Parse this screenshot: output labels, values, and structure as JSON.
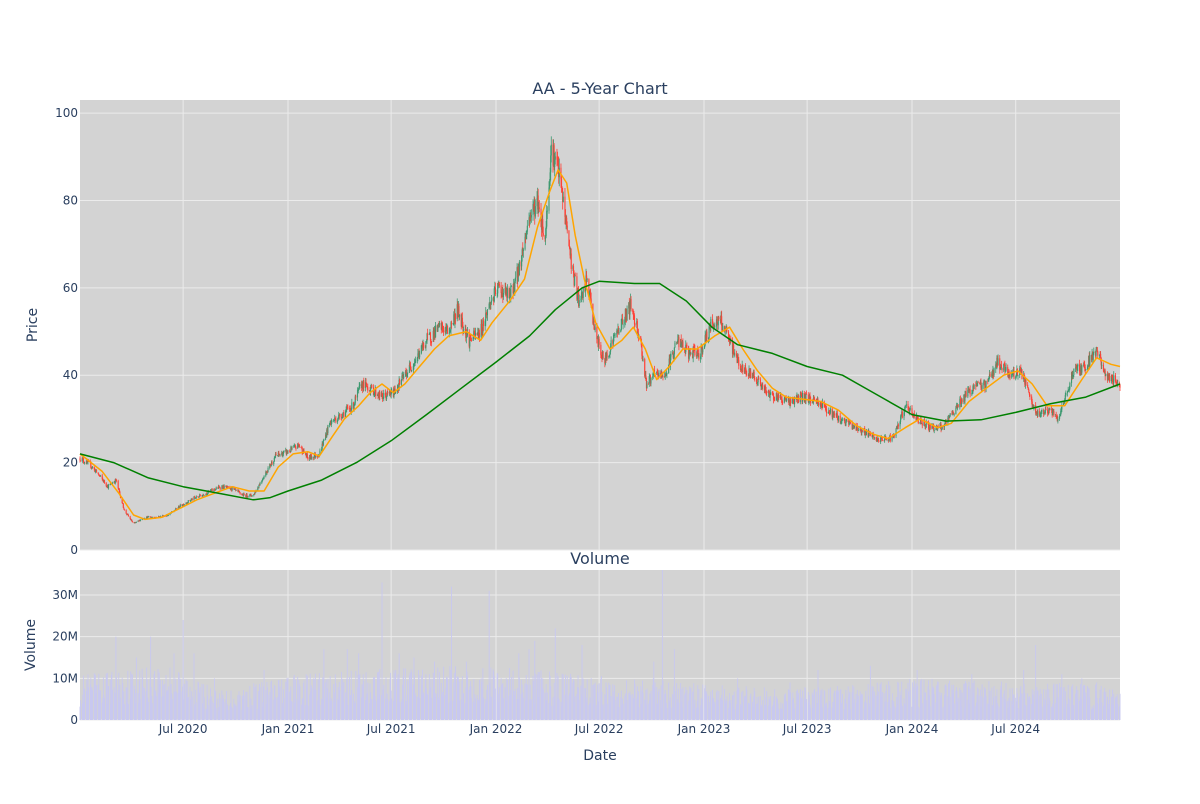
{
  "chart_data": [
    {
      "type": "candlestick",
      "title": "AA - 5-Year Chart",
      "xlabel": "",
      "ylabel": "Price",
      "ylim": [
        0,
        103
      ],
      "xlim": [
        "2020-01-02",
        "2024-12-31"
      ],
      "x_ticks": [
        "2020-07-01",
        "2021-01-01",
        "2021-07-01",
        "2022-01-01",
        "2022-07-01",
        "2023-01-01",
        "2023-07-01",
        "2024-01-01",
        "2024-07-01"
      ],
      "x_tick_labels": [
        "Jul 2020",
        "Jan 2021",
        "Jul 2021",
        "Jan 2022",
        "Jul 2022",
        "Jan 2023",
        "Jul 2023",
        "Jan 2024",
        "Jul 2024"
      ],
      "y_ticks": [
        0,
        20,
        40,
        60,
        80,
        100
      ],
      "y_tick_labels": [
        "0",
        "20",
        "40",
        "60",
        "80",
        "100"
      ],
      "grid": true,
      "legend": "none",
      "close_path": [
        [
          "2020-01-02",
          21
        ],
        [
          "2020-01-20",
          19.5
        ],
        [
          "2020-02-05",
          17
        ],
        [
          "2020-02-20",
          14.5
        ],
        [
          "2020-03-05",
          16
        ],
        [
          "2020-03-20",
          9
        ],
        [
          "2020-04-05",
          6
        ],
        [
          "2020-04-25",
          7.5
        ],
        [
          "2020-05-15",
          7.5
        ],
        [
          "2020-06-05",
          8
        ],
        [
          "2020-06-25",
          10
        ],
        [
          "2020-07-15",
          11.5
        ],
        [
          "2020-08-10",
          13
        ],
        [
          "2020-09-05",
          14.5
        ],
        [
          "2020-09-25",
          14
        ],
        [
          "2020-10-15",
          12.5
        ],
        [
          "2020-11-01",
          12.5
        ],
        [
          "2020-11-20",
          17
        ],
        [
          "2020-12-10",
          21.5
        ],
        [
          "2021-01-01",
          22.5
        ],
        [
          "2021-01-20",
          24
        ],
        [
          "2021-02-05",
          21
        ],
        [
          "2021-02-25",
          22
        ],
        [
          "2021-03-15",
          29
        ],
        [
          "2021-04-05",
          31
        ],
        [
          "2021-04-25",
          33
        ],
        [
          "2021-05-10",
          38
        ],
        [
          "2021-05-25",
          37
        ],
        [
          "2021-06-15",
          35
        ],
        [
          "2021-07-05",
          36
        ],
        [
          "2021-07-25",
          40
        ],
        [
          "2021-08-15",
          44
        ],
        [
          "2021-09-01",
          48
        ],
        [
          "2021-09-25",
          51
        ],
        [
          "2021-10-10",
          50
        ],
        [
          "2021-10-25",
          55
        ],
        [
          "2021-11-15",
          48
        ],
        [
          "2021-12-05",
          50
        ],
        [
          "2021-12-20",
          56
        ],
        [
          "2022-01-05",
          60
        ],
        [
          "2022-01-25",
          58
        ],
        [
          "2022-02-10",
          64
        ],
        [
          "2022-02-28",
          76
        ],
        [
          "2022-03-15",
          80
        ],
        [
          "2022-03-28",
          71
        ],
        [
          "2022-04-08",
          92
        ],
        [
          "2022-04-22",
          86
        ],
        [
          "2022-05-05",
          74
        ],
        [
          "2022-05-15",
          64
        ],
        [
          "2022-05-28",
          56
        ],
        [
          "2022-06-10",
          62
        ],
        [
          "2022-06-25",
          49
        ],
        [
          "2022-07-10",
          43
        ],
        [
          "2022-07-25",
          48
        ],
        [
          "2022-08-10",
          52
        ],
        [
          "2022-08-25",
          56
        ],
        [
          "2022-09-10",
          49
        ],
        [
          "2022-09-22",
          38
        ],
        [
          "2022-10-05",
          40
        ],
        [
          "2022-10-25",
          40
        ],
        [
          "2022-11-15",
          48
        ],
        [
          "2022-12-05",
          45
        ],
        [
          "2022-12-25",
          45
        ],
        [
          "2023-01-15",
          52
        ],
        [
          "2023-02-01",
          52
        ],
        [
          "2023-02-20",
          46
        ],
        [
          "2023-03-10",
          41
        ],
        [
          "2023-03-30",
          40
        ],
        [
          "2023-04-20",
          36
        ],
        [
          "2023-05-10",
          35
        ],
        [
          "2023-06-01",
          34
        ],
        [
          "2023-06-25",
          35
        ],
        [
          "2023-07-20",
          34
        ],
        [
          "2023-08-15",
          31
        ],
        [
          "2023-09-10",
          29
        ],
        [
          "2023-10-10",
          27
        ],
        [
          "2023-11-05",
          25
        ],
        [
          "2023-12-01",
          26
        ],
        [
          "2023-12-20",
          33
        ],
        [
          "2024-01-10",
          30
        ],
        [
          "2024-02-05",
          28
        ],
        [
          "2024-02-25",
          28
        ],
        [
          "2024-03-20",
          33
        ],
        [
          "2024-04-15",
          37
        ],
        [
          "2024-05-10",
          38
        ],
        [
          "2024-05-30",
          43
        ],
        [
          "2024-06-20",
          40
        ],
        [
          "2024-07-10",
          41
        ],
        [
          "2024-08-05",
          31
        ],
        [
          "2024-08-25",
          32
        ],
        [
          "2024-09-15",
          30
        ],
        [
          "2024-10-10",
          41
        ],
        [
          "2024-10-30",
          42
        ],
        [
          "2024-11-20",
          46
        ],
        [
          "2024-12-05",
          40
        ],
        [
          "2024-12-31",
          38
        ]
      ],
      "series": [
        {
          "kind": "moving-average-short",
          "color": "#ffa500",
          "points": [
            [
              "2020-01-02",
              22
            ],
            [
              "2020-02-10",
              18
            ],
            [
              "2020-03-10",
              13
            ],
            [
              "2020-04-05",
              8
            ],
            [
              "2020-04-25",
              7
            ],
            [
              "2020-05-25",
              7.5
            ],
            [
              "2020-06-25",
              9.5
            ],
            [
              "2020-07-25",
              11.5
            ],
            [
              "2020-08-25",
              13
            ],
            [
              "2020-09-25",
              14.5
            ],
            [
              "2020-10-25",
              13.5
            ],
            [
              "2020-11-20",
              13.5
            ],
            [
              "2020-12-15",
              19
            ],
            [
              "2021-01-10",
              22
            ],
            [
              "2021-02-05",
              22.5
            ],
            [
              "2021-02-25",
              21.5
            ],
            [
              "2021-03-20",
              26
            ],
            [
              "2021-04-10",
              30
            ],
            [
              "2021-05-05",
              33
            ],
            [
              "2021-05-25",
              36
            ],
            [
              "2021-06-15",
              38
            ],
            [
              "2021-07-05",
              36
            ],
            [
              "2021-07-25",
              38
            ],
            [
              "2021-08-20",
              42
            ],
            [
              "2021-09-15",
              46
            ],
            [
              "2021-10-10",
              49
            ],
            [
              "2021-11-10",
              50
            ],
            [
              "2021-12-05",
              48
            ],
            [
              "2021-12-25",
              52
            ],
            [
              "2022-01-25",
              57
            ],
            [
              "2022-02-20",
              62
            ],
            [
              "2022-03-15",
              74
            ],
            [
              "2022-04-05",
              82
            ],
            [
              "2022-04-20",
              87
            ],
            [
              "2022-05-05",
              84
            ],
            [
              "2022-05-20",
              72
            ],
            [
              "2022-06-05",
              62
            ],
            [
              "2022-06-25",
              52
            ],
            [
              "2022-07-20",
              46
            ],
            [
              "2022-08-10",
              48
            ],
            [
              "2022-08-30",
              51
            ],
            [
              "2022-09-20",
              46
            ],
            [
              "2022-10-10",
              39
            ],
            [
              "2022-11-01",
              42
            ],
            [
              "2022-11-25",
              46
            ],
            [
              "2022-12-20",
              46
            ],
            [
              "2023-01-20",
              49
            ],
            [
              "2023-02-15",
              51
            ],
            [
              "2023-03-10",
              46
            ],
            [
              "2023-04-05",
              41
            ],
            [
              "2023-05-01",
              37
            ],
            [
              "2023-05-25",
              35
            ],
            [
              "2023-06-25",
              34.5
            ],
            [
              "2023-07-25",
              34
            ],
            [
              "2023-08-25",
              32
            ],
            [
              "2023-09-25",
              28.5
            ],
            [
              "2023-10-25",
              26.5
            ],
            [
              "2023-11-20",
              25.5
            ],
            [
              "2023-12-20",
              28
            ],
            [
              "2024-01-15",
              30
            ],
            [
              "2024-02-15",
              28
            ],
            [
              "2024-03-10",
              29
            ],
            [
              "2024-04-10",
              34
            ],
            [
              "2024-05-10",
              37
            ],
            [
              "2024-06-10",
              40
            ],
            [
              "2024-07-05",
              41
            ],
            [
              "2024-07-30",
              38
            ],
            [
              "2024-08-25",
              33
            ],
            [
              "2024-09-25",
              33
            ],
            [
              "2024-10-25",
              39
            ],
            [
              "2024-11-20",
              44
            ],
            [
              "2024-12-15",
              42.5
            ],
            [
              "2024-12-31",
              42
            ]
          ]
        },
        {
          "kind": "moving-average-long",
          "color": "#008000",
          "points": [
            [
              "2020-01-02",
              22
            ],
            [
              "2020-03-01",
              20
            ],
            [
              "2020-05-01",
              16.5
            ],
            [
              "2020-07-01",
              14.5
            ],
            [
              "2020-09-01",
              13
            ],
            [
              "2020-11-01",
              11.5
            ],
            [
              "2020-12-01",
              12
            ],
            [
              "2021-01-01",
              13.5
            ],
            [
              "2021-03-01",
              16
            ],
            [
              "2021-05-01",
              20
            ],
            [
              "2021-07-01",
              25
            ],
            [
              "2021-09-01",
              31
            ],
            [
              "2021-11-01",
              37
            ],
            [
              "2022-01-01",
              43
            ],
            [
              "2022-03-01",
              49
            ],
            [
              "2022-04-15",
              55
            ],
            [
              "2022-06-01",
              60
            ],
            [
              "2022-07-01",
              61.5
            ],
            [
              "2022-09-01",
              61
            ],
            [
              "2022-10-15",
              61
            ],
            [
              "2022-12-01",
              57
            ],
            [
              "2023-01-15",
              51
            ],
            [
              "2023-03-01",
              47
            ],
            [
              "2023-05-01",
              45
            ],
            [
              "2023-07-01",
              42
            ],
            [
              "2023-09-01",
              40
            ],
            [
              "2023-11-01",
              35.5
            ],
            [
              "2024-01-01",
              31
            ],
            [
              "2024-03-01",
              29.5
            ],
            [
              "2024-05-01",
              29.8
            ],
            [
              "2024-07-01",
              31.5
            ],
            [
              "2024-09-01",
              33.5
            ],
            [
              "2024-11-01",
              35
            ],
            [
              "2024-12-31",
              38
            ]
          ]
        }
      ],
      "colors": {
        "up": "#3d9970",
        "down": "#ff4136",
        "plot_bg": "#d3d3d3",
        "grid": "#ebebeb",
        "paper": "#ffffff"
      }
    },
    {
      "type": "bar",
      "title": "Volume",
      "xlabel": "Date",
      "ylabel": "Volume",
      "ylim": [
        0,
        36000000
      ],
      "y_ticks": [
        0,
        10000000,
        20000000,
        30000000
      ],
      "y_tick_labels": [
        "0",
        "10M",
        "20M",
        "30M"
      ],
      "bar_color": "#c8c8f0",
      "base_level": [
        [
          "2020-01-02",
          7000000
        ],
        [
          "2020-06-01",
          9000000
        ],
        [
          "2020-09-01",
          4500000
        ],
        [
          "2021-01-01",
          7000000
        ],
        [
          "2021-06-01",
          8000000
        ],
        [
          "2022-01-01",
          8500000
        ],
        [
          "2022-06-01",
          7000000
        ],
        [
          "2022-10-01",
          6500000
        ],
        [
          "2023-01-01",
          5500000
        ],
        [
          "2023-06-01",
          5000000
        ],
        [
          "2023-10-01",
          5500000
        ],
        [
          "2024-01-01",
          6500000
        ],
        [
          "2024-06-01",
          6000000
        ],
        [
          "2024-12-31",
          5500000
        ]
      ],
      "spikes": [
        [
          "2020-03-05",
          20000000
        ],
        [
          "2020-04-10",
          15000000
        ],
        [
          "2020-05-05",
          20000000
        ],
        [
          "2020-06-15",
          16000000
        ],
        [
          "2020-07-01",
          24000000
        ],
        [
          "2020-07-20",
          16000000
        ],
        [
          "2020-08-25",
          10000000
        ],
        [
          "2020-11-20",
          12000000
        ],
        [
          "2021-01-10",
          22000000
        ],
        [
          "2021-02-15",
          10000000
        ],
        [
          "2021-03-05",
          17000000
        ],
        [
          "2021-04-15",
          17000000
        ],
        [
          "2021-05-05",
          16000000
        ],
        [
          "2021-06-15",
          33000000
        ],
        [
          "2021-07-15",
          16000000
        ],
        [
          "2021-08-10",
          15000000
        ],
        [
          "2021-09-15",
          14000000
        ],
        [
          "2021-10-15",
          32000000
        ],
        [
          "2021-11-10",
          14000000
        ],
        [
          "2021-12-20",
          31000000
        ],
        [
          "2022-02-10",
          16000000
        ],
        [
          "2022-02-28",
          17000000
        ],
        [
          "2022-03-10",
          19000000
        ],
        [
          "2022-04-15",
          22000000
        ],
        [
          "2022-05-01",
          13000000
        ],
        [
          "2022-06-01",
          18000000
        ],
        [
          "2022-09-10",
          12000000
        ],
        [
          "2022-10-05",
          14000000
        ],
        [
          "2022-10-20",
          36000000
        ],
        [
          "2022-11-10",
          17000000
        ],
        [
          "2023-01-15",
          12000000
        ],
        [
          "2023-03-01",
          10000000
        ],
        [
          "2023-06-01",
          9000000
        ],
        [
          "2023-07-20",
          12000000
        ],
        [
          "2023-09-10",
          19000000
        ],
        [
          "2023-10-20",
          13000000
        ],
        [
          "2023-12-10",
          19000000
        ],
        [
          "2024-01-10",
          12000000
        ],
        [
          "2024-04-15",
          11000000
        ],
        [
          "2024-07-15",
          12000000
        ],
        [
          "2024-08-05",
          18000000
        ],
        [
          "2024-09-20",
          11000000
        ],
        [
          "2024-10-25",
          10000000
        ],
        [
          "2024-11-20",
          9000000
        ]
      ],
      "colors": {
        "plot_bg": "#d3d3d3",
        "grid": "#ebebeb"
      }
    }
  ]
}
